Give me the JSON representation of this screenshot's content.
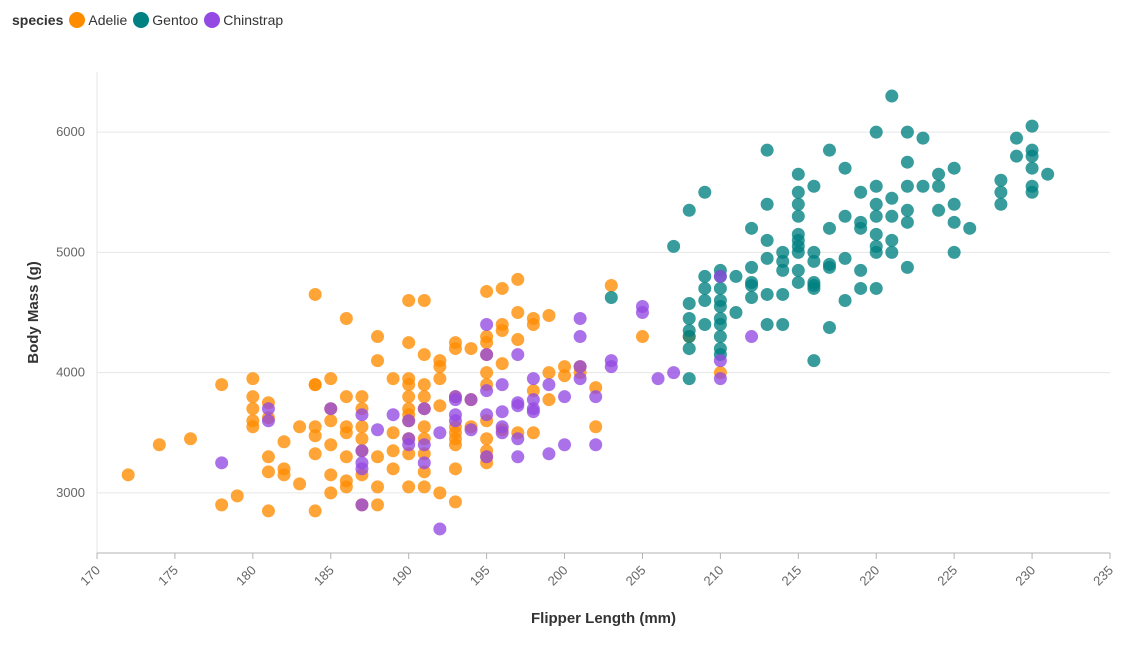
{
  "legend": {
    "title": "species",
    "items": [
      {
        "label": "Adelie",
        "color": "#ff8c00"
      },
      {
        "label": "Gentoo",
        "color": "#008080"
      },
      {
        "label": "Chinstrap",
        "color": "#9449e2"
      }
    ]
  },
  "chart_data": {
    "type": "scatter",
    "xlabel": "Flipper Length (mm)",
    "ylabel": "Body Mass (g)",
    "xlim": [
      170,
      235
    ],
    "ylim": [
      2500,
      6500
    ],
    "xticks": [
      170,
      175,
      180,
      185,
      190,
      195,
      200,
      205,
      210,
      215,
      220,
      225,
      230,
      235
    ],
    "yticks": [
      3000,
      4000,
      5000,
      6000
    ],
    "grid": "horizontal",
    "legend_position": "top-left",
    "series": [
      {
        "name": "Adelie",
        "color": "#ff8c00",
        "points": [
          [
            172,
            3150
          ],
          [
            174,
            3400
          ],
          [
            176,
            3450
          ],
          [
            178,
            3900
          ],
          [
            178,
            2900
          ],
          [
            179,
            2975
          ],
          [
            180,
            3950
          ],
          [
            180,
            3800
          ],
          [
            180,
            3700
          ],
          [
            180,
            3600
          ],
          [
            180,
            3550
          ],
          [
            181,
            3750
          ],
          [
            181,
            3625
          ],
          [
            181,
            3300
          ],
          [
            181,
            3175
          ],
          [
            181,
            2850
          ],
          [
            182,
            3425
          ],
          [
            182,
            3200
          ],
          [
            182,
            3150
          ],
          [
            183,
            3550
          ],
          [
            183,
            3075
          ],
          [
            184,
            4650
          ],
          [
            184,
            3900
          ],
          [
            184,
            3900
          ],
          [
            184,
            3550
          ],
          [
            184,
            3475
          ],
          [
            184,
            3325
          ],
          [
            184,
            2850
          ],
          [
            185,
            3950
          ],
          [
            185,
            3700
          ],
          [
            185,
            3600
          ],
          [
            185,
            3400
          ],
          [
            185,
            3150
          ],
          [
            185,
            3000
          ],
          [
            186,
            4450
          ],
          [
            186,
            3800
          ],
          [
            186,
            3550
          ],
          [
            186,
            3500
          ],
          [
            186,
            3300
          ],
          [
            186,
            3100
          ],
          [
            186,
            3050
          ],
          [
            187,
            3800
          ],
          [
            187,
            3700
          ],
          [
            187,
            3550
          ],
          [
            187,
            3450
          ],
          [
            187,
            3350
          ],
          [
            187,
            3150
          ],
          [
            187,
            2900
          ],
          [
            188,
            4300
          ],
          [
            188,
            4100
          ],
          [
            188,
            3300
          ],
          [
            188,
            3050
          ],
          [
            188,
            2900
          ],
          [
            189,
            3950
          ],
          [
            189,
            3500
          ],
          [
            189,
            3350
          ],
          [
            189,
            3200
          ],
          [
            190,
            4600
          ],
          [
            190,
            4250
          ],
          [
            190,
            3950
          ],
          [
            190,
            3900
          ],
          [
            190,
            3800
          ],
          [
            190,
            3700
          ],
          [
            190,
            3650
          ],
          [
            190,
            3600
          ],
          [
            190,
            3450
          ],
          [
            190,
            3325
          ],
          [
            190,
            3050
          ],
          [
            191,
            4600
          ],
          [
            191,
            4150
          ],
          [
            191,
            3900
          ],
          [
            191,
            3800
          ],
          [
            191,
            3700
          ],
          [
            191,
            3550
          ],
          [
            191,
            3450
          ],
          [
            191,
            3325
          ],
          [
            191,
            3175
          ],
          [
            191,
            3050
          ],
          [
            192,
            4100
          ],
          [
            192,
            4050
          ],
          [
            192,
            3950
          ],
          [
            192,
            3725
          ],
          [
            192,
            3000
          ],
          [
            193,
            4250
          ],
          [
            193,
            4200
          ],
          [
            193,
            3800
          ],
          [
            193,
            3550
          ],
          [
            193,
            3500
          ],
          [
            193,
            3450
          ],
          [
            193,
            3400
          ],
          [
            193,
            3200
          ],
          [
            193,
            2925
          ],
          [
            194,
            4200
          ],
          [
            194,
            3775
          ],
          [
            194,
            3550
          ],
          [
            195,
            4675
          ],
          [
            195,
            4300
          ],
          [
            195,
            4250
          ],
          [
            195,
            4150
          ],
          [
            195,
            4000
          ],
          [
            195,
            3900
          ],
          [
            195,
            3600
          ],
          [
            195,
            3450
          ],
          [
            195,
            3350
          ],
          [
            195,
            3300
          ],
          [
            195,
            3250
          ],
          [
            196,
            4700
          ],
          [
            196,
            4400
          ],
          [
            196,
            4350
          ],
          [
            196,
            4075
          ],
          [
            196,
            3525
          ],
          [
            197,
            4775
          ],
          [
            197,
            4500
          ],
          [
            197,
            4275
          ],
          [
            197,
            3500
          ],
          [
            198,
            4450
          ],
          [
            198,
            4400
          ],
          [
            198,
            3850
          ],
          [
            198,
            3500
          ],
          [
            199,
            4475
          ],
          [
            199,
            4000
          ],
          [
            199,
            3775
          ],
          [
            200,
            4050
          ],
          [
            200,
            3975
          ],
          [
            201,
            4000
          ],
          [
            201,
            4050
          ],
          [
            202,
            3875
          ],
          [
            202,
            3550
          ],
          [
            203,
            4725
          ],
          [
            205,
            4300
          ],
          [
            208,
            4300
          ],
          [
            210,
            4000
          ]
        ]
      },
      {
        "name": "Gentoo",
        "color": "#008080",
        "points": [
          [
            203,
            4625
          ],
          [
            207,
            5050
          ],
          [
            208,
            5350
          ],
          [
            208,
            4575
          ],
          [
            208,
            4450
          ],
          [
            208,
            4350
          ],
          [
            208,
            4300
          ],
          [
            208,
            4200
          ],
          [
            208,
            3950
          ],
          [
            209,
            5500
          ],
          [
            209,
            4800
          ],
          [
            209,
            4700
          ],
          [
            209,
            4600
          ],
          [
            209,
            4400
          ],
          [
            210,
            4850
          ],
          [
            210,
            4800
          ],
          [
            210,
            4700
          ],
          [
            210,
            4600
          ],
          [
            210,
            4550
          ],
          [
            210,
            4450
          ],
          [
            210,
            4400
          ],
          [
            210,
            4300
          ],
          [
            210,
            4200
          ],
          [
            210,
            4150
          ],
          [
            211,
            4800
          ],
          [
            211,
            4500
          ],
          [
            212,
            5200
          ],
          [
            212,
            4875
          ],
          [
            212,
            4750
          ],
          [
            212,
            4725
          ],
          [
            212,
            4625
          ],
          [
            213,
            5850
          ],
          [
            213,
            5400
          ],
          [
            213,
            5100
          ],
          [
            213,
            4950
          ],
          [
            213,
            4650
          ],
          [
            213,
            4400
          ],
          [
            214,
            5000
          ],
          [
            214,
            4925
          ],
          [
            214,
            4850
          ],
          [
            214,
            4650
          ],
          [
            214,
            4400
          ],
          [
            215,
            5650
          ],
          [
            215,
            5500
          ],
          [
            215,
            5400
          ],
          [
            215,
            5300
          ],
          [
            215,
            5150
          ],
          [
            215,
            5100
          ],
          [
            215,
            5050
          ],
          [
            215,
            5000
          ],
          [
            215,
            4850
          ],
          [
            215,
            4750
          ],
          [
            216,
            5550
          ],
          [
            216,
            5000
          ],
          [
            216,
            4925
          ],
          [
            216,
            4750
          ],
          [
            216,
            4725
          ],
          [
            216,
            4700
          ],
          [
            216,
            4100
          ],
          [
            217,
            5850
          ],
          [
            217,
            5200
          ],
          [
            217,
            4900
          ],
          [
            217,
            4875
          ],
          [
            217,
            4375
          ],
          [
            218,
            5700
          ],
          [
            218,
            5300
          ],
          [
            218,
            4950
          ],
          [
            218,
            4600
          ],
          [
            219,
            5500
          ],
          [
            219,
            5250
          ],
          [
            219,
            5200
          ],
          [
            219,
            4850
          ],
          [
            219,
            4700
          ],
          [
            220,
            6000
          ],
          [
            220,
            5550
          ],
          [
            220,
            5400
          ],
          [
            220,
            5300
          ],
          [
            220,
            5150
          ],
          [
            220,
            5050
          ],
          [
            220,
            5000
          ],
          [
            220,
            4700
          ],
          [
            221,
            6300
          ],
          [
            221,
            5450
          ],
          [
            221,
            5300
          ],
          [
            221,
            5100
          ],
          [
            221,
            5000
          ],
          [
            222,
            6000
          ],
          [
            222,
            5750
          ],
          [
            222,
            5550
          ],
          [
            222,
            5350
          ],
          [
            222,
            5250
          ],
          [
            222,
            4875
          ],
          [
            223,
            5950
          ],
          [
            223,
            5550
          ],
          [
            224,
            5650
          ],
          [
            224,
            5550
          ],
          [
            224,
            5350
          ],
          [
            225,
            5700
          ],
          [
            225,
            5400
          ],
          [
            225,
            5250
          ],
          [
            225,
            5000
          ],
          [
            226,
            5200
          ],
          [
            228,
            5600
          ],
          [
            228,
            5500
          ],
          [
            228,
            5400
          ],
          [
            229,
            5950
          ],
          [
            229,
            5800
          ],
          [
            230,
            6050
          ],
          [
            230,
            5850
          ],
          [
            230,
            5800
          ],
          [
            230,
            5700
          ],
          [
            230,
            5550
          ],
          [
            230,
            5500
          ],
          [
            231,
            5650
          ]
        ]
      },
      {
        "name": "Chinstrap",
        "color": "#9449e2",
        "points": [
          [
            178,
            3250
          ],
          [
            181,
            3700
          ],
          [
            181,
            3600
          ],
          [
            185,
            3700
          ],
          [
            187,
            3650
          ],
          [
            187,
            3350
          ],
          [
            187,
            3250
          ],
          [
            187,
            3200
          ],
          [
            187,
            2900
          ],
          [
            188,
            3525
          ],
          [
            189,
            3650
          ],
          [
            190,
            3600
          ],
          [
            190,
            3450
          ],
          [
            190,
            3400
          ],
          [
            191,
            3700
          ],
          [
            191,
            3400
          ],
          [
            191,
            3250
          ],
          [
            192,
            3500
          ],
          [
            192,
            2700
          ],
          [
            193,
            3800
          ],
          [
            193,
            3775
          ],
          [
            193,
            3650
          ],
          [
            193,
            3600
          ],
          [
            194,
            3775
          ],
          [
            194,
            3525
          ],
          [
            195,
            4400
          ],
          [
            195,
            4150
          ],
          [
            195,
            3850
          ],
          [
            195,
            3650
          ],
          [
            195,
            3300
          ],
          [
            196,
            3900
          ],
          [
            196,
            3675
          ],
          [
            196,
            3550
          ],
          [
            196,
            3500
          ],
          [
            197,
            4150
          ],
          [
            197,
            3750
          ],
          [
            197,
            3725
          ],
          [
            197,
            3450
          ],
          [
            197,
            3300
          ],
          [
            198,
            3950
          ],
          [
            198,
            3775
          ],
          [
            198,
            3700
          ],
          [
            198,
            3675
          ],
          [
            199,
            3900
          ],
          [
            199,
            3325
          ],
          [
            200,
            3800
          ],
          [
            200,
            3400
          ],
          [
            201,
            4450
          ],
          [
            201,
            4300
          ],
          [
            201,
            4050
          ],
          [
            201,
            3950
          ],
          [
            202,
            3800
          ],
          [
            202,
            3400
          ],
          [
            203,
            4100
          ],
          [
            203,
            4050
          ],
          [
            205,
            4550
          ],
          [
            205,
            4500
          ],
          [
            206,
            3950
          ],
          [
            207,
            4000
          ],
          [
            210,
            4800
          ],
          [
            210,
            4100
          ],
          [
            210,
            3950
          ],
          [
            212,
            4300
          ]
        ]
      }
    ]
  }
}
